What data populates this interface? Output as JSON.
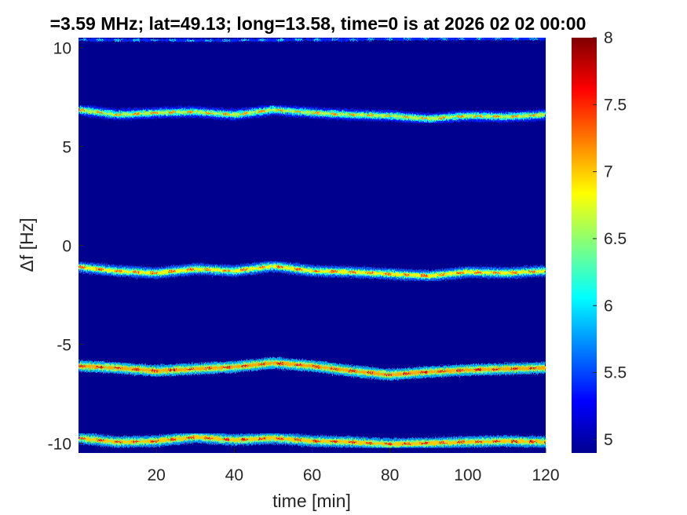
{
  "chart_data": {
    "type": "heatmap",
    "title": "=3.59 MHz;  lat=49.13; long=13.58, time=0 is at 2026 02 02 00:00",
    "xlabel": "time [min]",
    "ylabel": "Δf [Hz]",
    "xlim": [
      0,
      120
    ],
    "ylim": [
      -10.5,
      10.5
    ],
    "x_ticks": [
      20,
      40,
      60,
      80,
      100,
      120
    ],
    "x_tick_labels": [
      "20",
      "40",
      "60",
      "80",
      "100",
      "120"
    ],
    "y_ticks": [
      10,
      5,
      0,
      -5,
      -10
    ],
    "y_tick_labels": [
      "10",
      "5",
      "0",
      "-5",
      "-10"
    ],
    "colorbar": {
      "colormap": "jet",
      "range": [
        4.9,
        8.0
      ],
      "ticks": [
        8,
        7.5,
        7,
        6.5,
        6,
        5.5,
        5
      ],
      "tick_labels": [
        "8",
        "7.5",
        "7",
        "6.5",
        "6",
        "5.5",
        "5"
      ]
    },
    "background_value": 4.9,
    "traces": [
      {
        "name": "",
        "intensity": 6.6,
        "points": [
          [
            0,
            6.85
          ],
          [
            10,
            6.6
          ],
          [
            20,
            6.7
          ],
          [
            30,
            6.75
          ],
          [
            40,
            6.6
          ],
          [
            50,
            6.85
          ],
          [
            60,
            6.7
          ],
          [
            70,
            6.6
          ],
          [
            80,
            6.55
          ],
          [
            90,
            6.4
          ],
          [
            100,
            6.55
          ],
          [
            110,
            6.5
          ],
          [
            120,
            6.6
          ]
        ]
      },
      {
        "name": "",
        "intensity": 6.8,
        "points": [
          [
            0,
            -1.1
          ],
          [
            10,
            -1.3
          ],
          [
            20,
            -1.4
          ],
          [
            30,
            -1.2
          ],
          [
            40,
            -1.3
          ],
          [
            50,
            -1.05
          ],
          [
            60,
            -1.3
          ],
          [
            70,
            -1.35
          ],
          [
            80,
            -1.45
          ],
          [
            90,
            -1.55
          ],
          [
            100,
            -1.35
          ],
          [
            110,
            -1.4
          ],
          [
            120,
            -1.3
          ]
        ]
      },
      {
        "name": "",
        "intensity": 7.1,
        "points": [
          [
            0,
            -6.1
          ],
          [
            10,
            -6.2
          ],
          [
            20,
            -6.35
          ],
          [
            30,
            -6.25
          ],
          [
            40,
            -6.15
          ],
          [
            50,
            -5.95
          ],
          [
            60,
            -6.1
          ],
          [
            70,
            -6.35
          ],
          [
            80,
            -6.55
          ],
          [
            90,
            -6.4
          ],
          [
            100,
            -6.3
          ],
          [
            110,
            -6.25
          ],
          [
            120,
            -6.2
          ]
        ]
      },
      {
        "name": "",
        "intensity": 7.0,
        "points": [
          [
            0,
            -9.75
          ],
          [
            10,
            -9.95
          ],
          [
            20,
            -9.9
          ],
          [
            30,
            -9.7
          ],
          [
            40,
            -9.85
          ],
          [
            50,
            -9.75
          ],
          [
            60,
            -9.9
          ],
          [
            70,
            -9.95
          ],
          [
            80,
            -10.05
          ],
          [
            90,
            -10.0
          ],
          [
            100,
            -9.95
          ],
          [
            110,
            -9.9
          ],
          [
            120,
            -9.95
          ]
        ]
      },
      {
        "name": "",
        "intensity": 5.4,
        "points": [
          [
            0,
            10.4
          ],
          [
            30,
            10.35
          ],
          [
            60,
            10.4
          ],
          [
            90,
            10.45
          ],
          [
            120,
            10.45
          ]
        ]
      }
    ]
  }
}
